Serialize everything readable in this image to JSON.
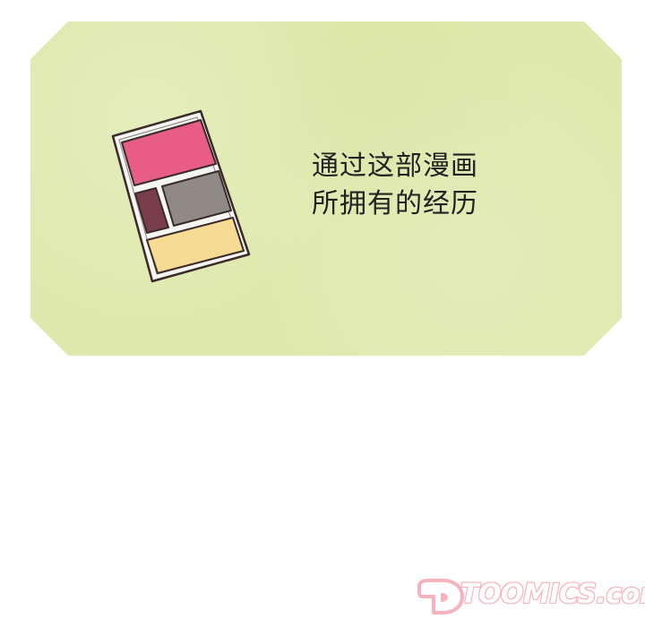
{
  "panel": {
    "caption_lines": [
      "通过这部漫画",
      "所拥有的经历"
    ],
    "background_color": "#dfe9ad"
  },
  "illustration": {
    "icon": "eyeshadow-palette-icon",
    "colors": {
      "top": "#e85d86",
      "left": "#7a3d4a",
      "middle": "#8f8a86",
      "bottom": "#f7db95",
      "case": "#f5f5f2",
      "outline": "#3a2a2a"
    }
  },
  "watermark": {
    "text": "TOOMICS.com",
    "color": "#f6b3be"
  }
}
